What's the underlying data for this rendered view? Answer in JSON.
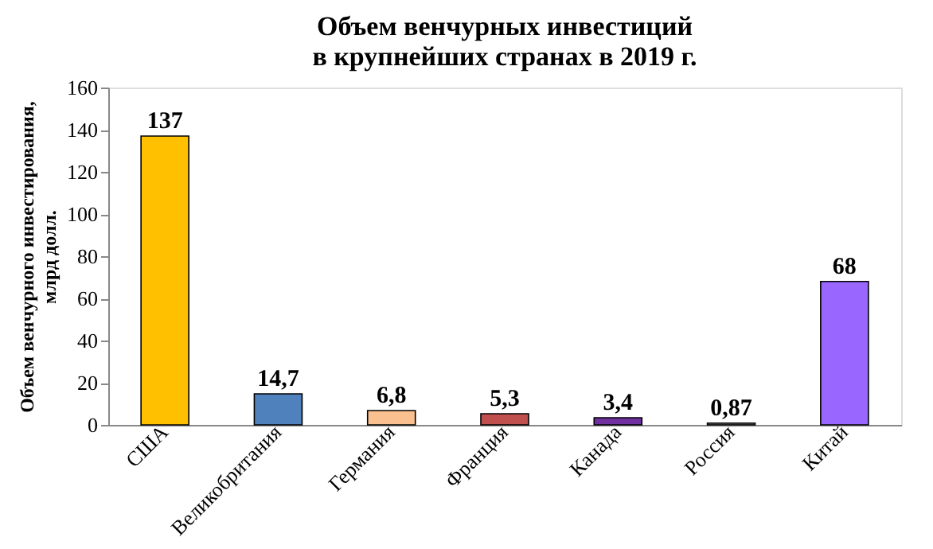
{
  "chart_data": {
    "type": "bar",
    "title": "Объем венчурных инвестиций\nв крупнейших странах в 2019 г.",
    "ylabel": "Объем венчурного инвестирования,\nмлрд долл.",
    "categories": [
      "США",
      "Великобритания",
      "Германия",
      "Франция",
      "Канада",
      "Россия",
      "Китай"
    ],
    "values": [
      137,
      14.7,
      6.8,
      5.3,
      3.4,
      0.87,
      68
    ],
    "value_labels": [
      "137",
      "14,7",
      "6,8",
      "5,3",
      "3,4",
      "0,87",
      "68"
    ],
    "colors": [
      "#ffc000",
      "#4f81bd",
      "#fac090",
      "#c0504d",
      "#7030a0",
      "#7f7f7f",
      "#9966ff"
    ],
    "ylim": [
      0,
      160
    ],
    "yticks": [
      0,
      20,
      40,
      60,
      80,
      100,
      120,
      140,
      160
    ],
    "grid": false,
    "legend": false
  }
}
